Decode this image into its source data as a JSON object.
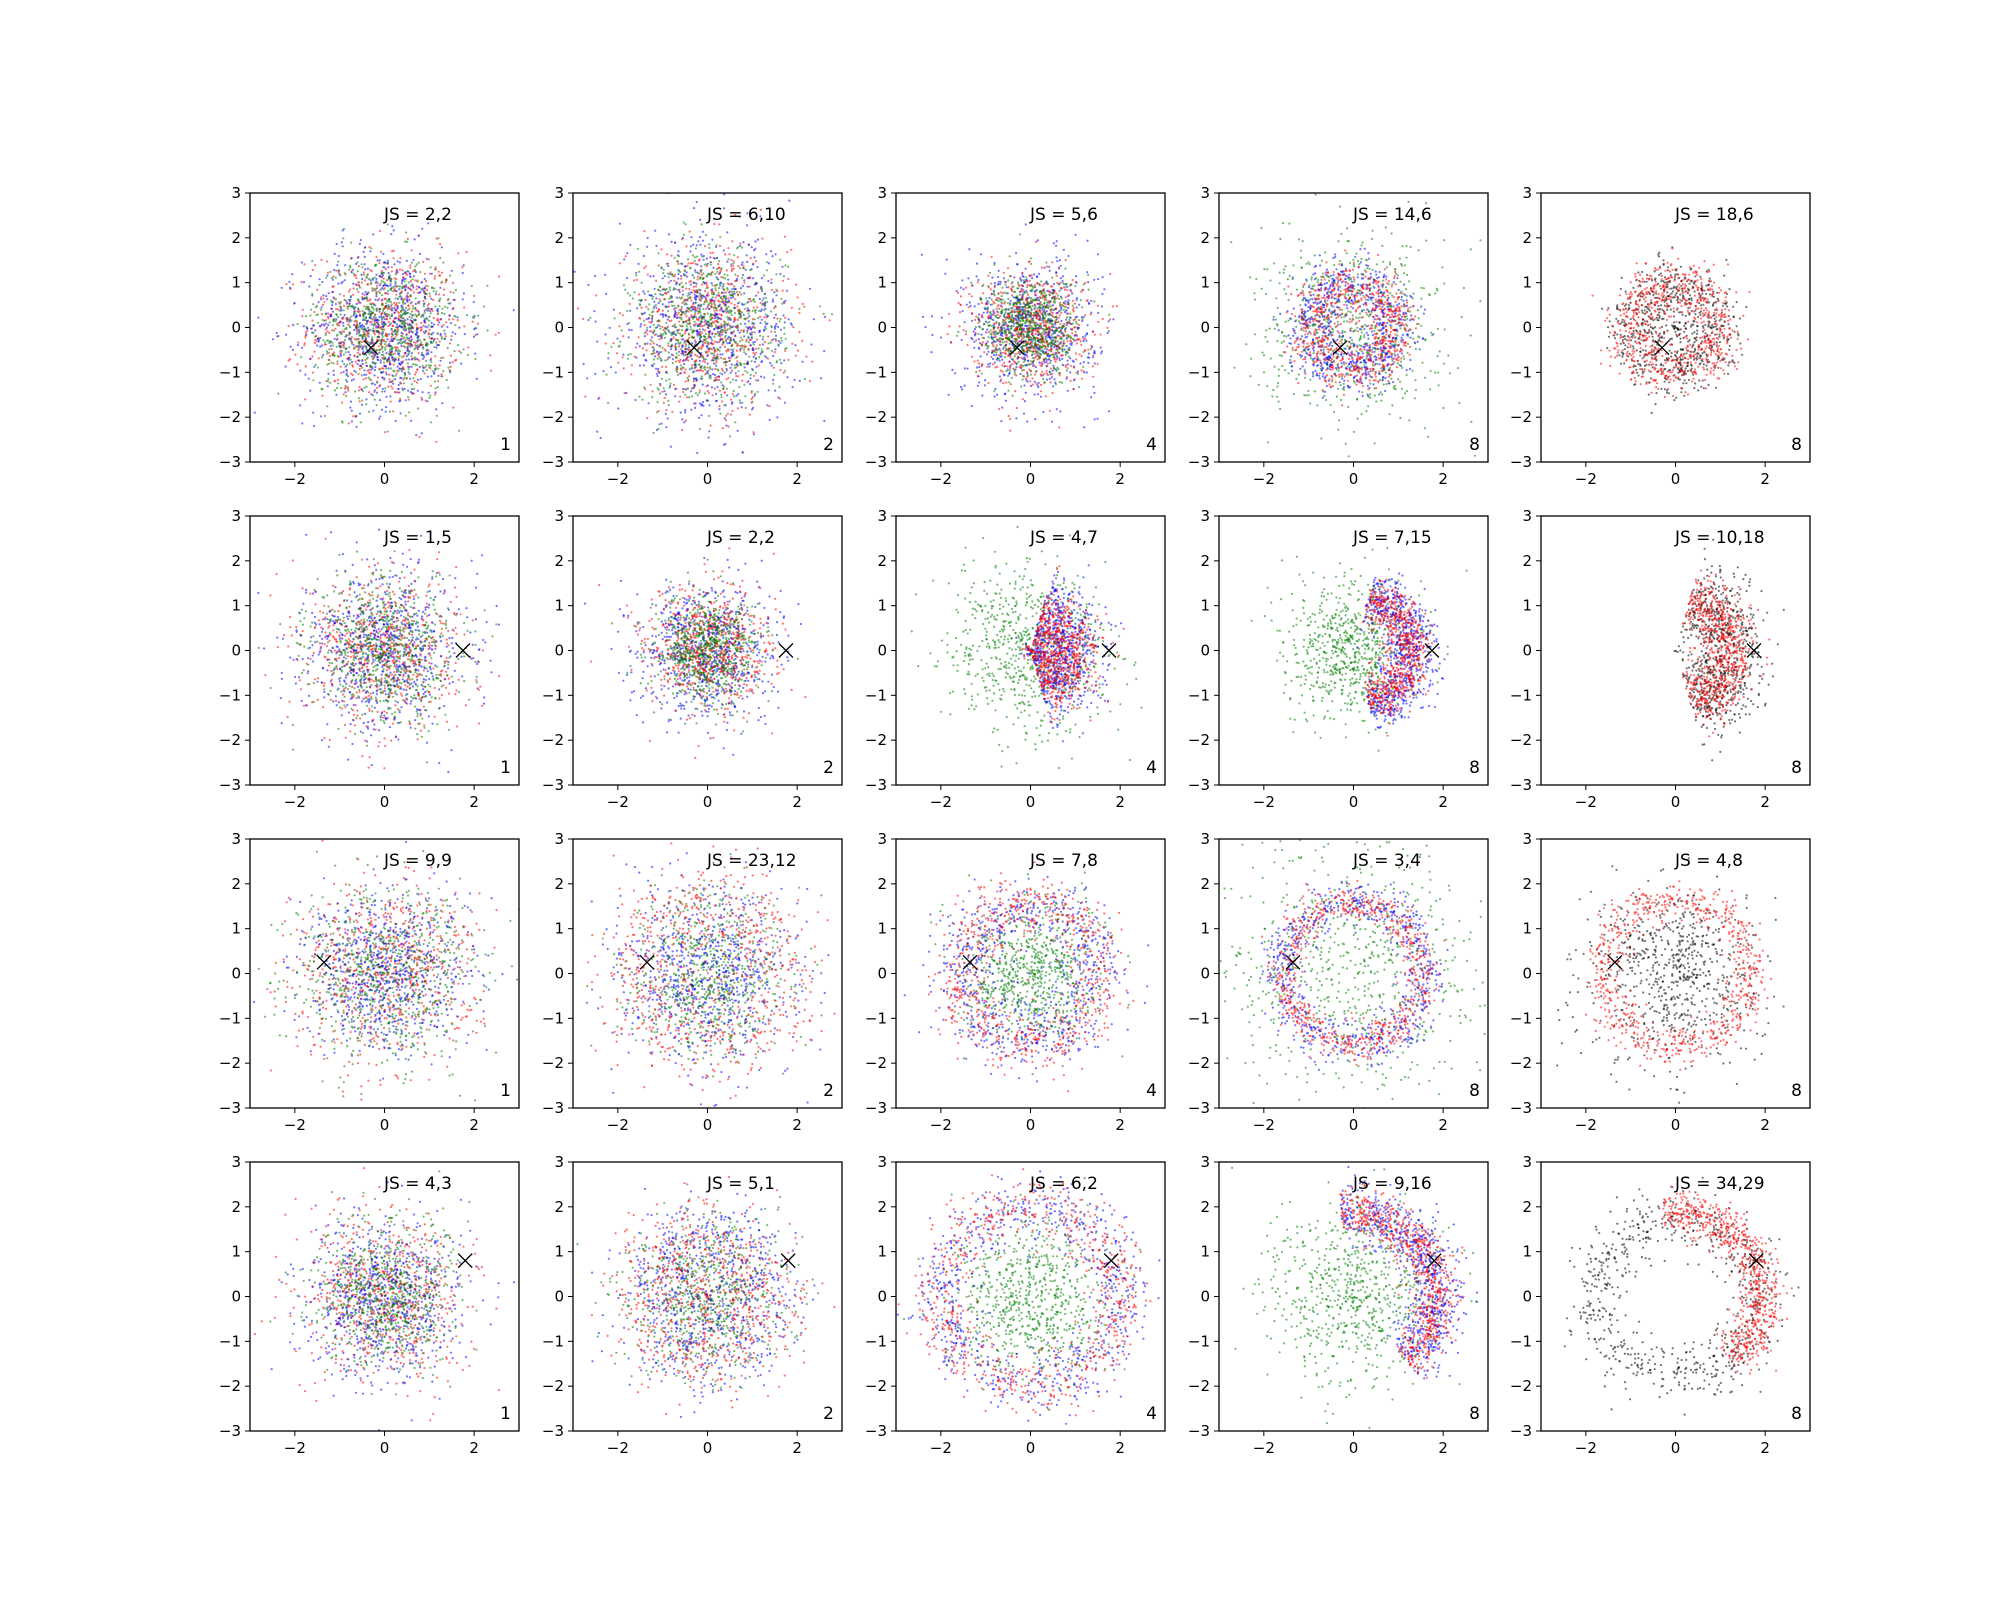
{
  "figure": {
    "background": "#ffffff",
    "color_legend": {
      "red": "#ff0000",
      "blue": "#0000ff",
      "green": "#008000",
      "black": "#000000"
    },
    "marker_symbol": "x"
  },
  "chart_data": [
    {
      "type": "scatter",
      "row": 0,
      "col": 0,
      "js_label": "JS = 2,2",
      "corner_label": "1",
      "marker": [
        -0.3,
        -0.45
      ],
      "xlim": [
        -3,
        3
      ],
      "ylim": [
        -3,
        3
      ],
      "xticks": [
        -2,
        0,
        2
      ],
      "yticks": [
        -3,
        -2,
        -1,
        0,
        1,
        2,
        3
      ],
      "series": [
        {
          "color": "#ff0000",
          "shape": "blob",
          "radius": 0,
          "spread": 0.85
        },
        {
          "color": "#0000ff",
          "shape": "blob",
          "radius": 0,
          "spread": 0.9
        },
        {
          "color": "#008000",
          "shape": "blob",
          "radius": 0,
          "spread": 0.8
        }
      ]
    },
    {
      "type": "scatter",
      "row": 0,
      "col": 1,
      "js_label": "JS = 6,10",
      "corner_label": "2",
      "marker": [
        -0.3,
        -0.45
      ],
      "xlim": [
        -3,
        3
      ],
      "ylim": [
        -3,
        3
      ],
      "xticks": [
        -2,
        0,
        2
      ],
      "yticks": [
        -3,
        -2,
        -1,
        0,
        1,
        2,
        3
      ],
      "series": [
        {
          "color": "#ff0000",
          "shape": "blob",
          "radius": 0,
          "spread": 0.9
        },
        {
          "color": "#0000ff",
          "shape": "blob",
          "radius": 0,
          "spread": 1.0
        },
        {
          "color": "#008000",
          "shape": "blob",
          "radius": 0,
          "spread": 0.85
        }
      ]
    },
    {
      "type": "scatter",
      "row": 0,
      "col": 2,
      "js_label": "JS = 5,6",
      "corner_label": "4",
      "marker": [
        -0.3,
        -0.45
      ],
      "xlim": [
        -3,
        3
      ],
      "ylim": [
        -3,
        3
      ],
      "xticks": [
        -2,
        0,
        2
      ],
      "yticks": [
        -3,
        -2,
        -1,
        0,
        1,
        2,
        3
      ],
      "series": [
        {
          "color": "#0000ff",
          "shape": "blob",
          "radius": 0,
          "spread": 0.75
        },
        {
          "color": "#ff0000",
          "shape": "blob",
          "radius": 0,
          "spread": 0.65
        },
        {
          "color": "#008000",
          "shape": "blob",
          "radius": 0,
          "spread": 0.55
        }
      ]
    },
    {
      "type": "scatter",
      "row": 0,
      "col": 3,
      "js_label": "JS = 14,6",
      "corner_label": "8",
      "marker": [
        -0.3,
        -0.45
      ],
      "xlim": [
        -3,
        3
      ],
      "ylim": [
        -3,
        3
      ],
      "xticks": [
        -2,
        0,
        2
      ],
      "yticks": [
        -3,
        -2,
        -1,
        0,
        1,
        2,
        3
      ],
      "series": [
        {
          "color": "#008000",
          "shape": "blob",
          "radius": 0,
          "spread": 1.0
        },
        {
          "color": "#0000ff",
          "shape": "ring",
          "radius": 1.0,
          "spread": 0.3
        },
        {
          "color": "#ff0000",
          "shape": "ring",
          "radius": 0.95,
          "spread": 0.28
        }
      ]
    },
    {
      "type": "scatter",
      "row": 0,
      "col": 4,
      "js_label": "JS = 18,6",
      "corner_label": "8",
      "marker": [
        -0.3,
        -0.45
      ],
      "xlim": [
        -3,
        3
      ],
      "ylim": [
        -3,
        3
      ],
      "xticks": [
        -2,
        0,
        2
      ],
      "yticks": [
        -3,
        -2,
        -1,
        0,
        1,
        2,
        3
      ],
      "series": [
        {
          "color": "#000000",
          "shape": "ring",
          "radius": 0.9,
          "spread": 0.35
        },
        {
          "color": "#ff0000",
          "shape": "ring",
          "radius": 1.0,
          "spread": 0.3
        }
      ]
    },
    {
      "type": "scatter",
      "row": 1,
      "col": 0,
      "js_label": "JS = 1,5",
      "corner_label": "1",
      "marker": [
        1.75,
        0.0
      ],
      "xlim": [
        -3,
        3
      ],
      "ylim": [
        -3,
        3
      ],
      "xticks": [
        -2,
        0,
        2
      ],
      "yticks": [
        -3,
        -2,
        -1,
        0,
        1,
        2,
        3
      ],
      "series": [
        {
          "color": "#ff0000",
          "shape": "blob",
          "radius": 0,
          "spread": 0.85
        },
        {
          "color": "#0000ff",
          "shape": "blob",
          "radius": 0,
          "spread": 0.9
        },
        {
          "color": "#008000",
          "shape": "blob",
          "radius": 0,
          "spread": 0.8
        }
      ]
    },
    {
      "type": "scatter",
      "row": 1,
      "col": 1,
      "js_label": "JS = 2,2",
      "corner_label": "2",
      "marker": [
        1.75,
        0.0
      ],
      "xlim": [
        -3,
        3
      ],
      "ylim": [
        -3,
        3
      ],
      "xticks": [
        -2,
        0,
        2
      ],
      "yticks": [
        -3,
        -2,
        -1,
        0,
        1,
        2,
        3
      ],
      "series": [
        {
          "color": "#0000ff",
          "shape": "blob",
          "radius": 0,
          "spread": 0.75
        },
        {
          "color": "#ff0000",
          "shape": "blob",
          "radius": 0,
          "spread": 0.7
        },
        {
          "color": "#008000",
          "shape": "blob",
          "radius": 0,
          "spread": 0.6
        }
      ]
    },
    {
      "type": "scatter",
      "row": 1,
      "col": 2,
      "js_label": "JS = 4,7",
      "corner_label": "4",
      "marker": [
        1.75,
        0.0
      ],
      "xlim": [
        -3,
        3
      ],
      "ylim": [
        -3,
        3
      ],
      "xticks": [
        -2,
        0,
        2
      ],
      "yticks": [
        -3,
        -2,
        -1,
        0,
        1,
        2,
        3
      ],
      "series": [
        {
          "color": "#008000",
          "shape": "blob",
          "radius": 0,
          "spread": 0.9
        },
        {
          "color": "#0000ff",
          "shape": "arc",
          "radius": 0.95,
          "spread": 0.45
        },
        {
          "color": "#ff0000",
          "shape": "arc",
          "radius": 0.85,
          "spread": 0.4
        }
      ]
    },
    {
      "type": "scatter",
      "row": 1,
      "col": 3,
      "js_label": "JS = 7,15",
      "corner_label": "8",
      "marker": [
        1.75,
        0.0
      ],
      "xlim": [
        -3,
        3
      ],
      "ylim": [
        -3,
        3
      ],
      "xticks": [
        -2,
        0,
        2
      ],
      "yticks": [
        -3,
        -2,
        -1,
        0,
        1,
        2,
        3
      ],
      "series": [
        {
          "color": "#008000",
          "shape": "blob",
          "radius": 0,
          "spread": 0.75
        },
        {
          "color": "#0000ff",
          "shape": "arc",
          "radius": 1.35,
          "spread": 0.3
        },
        {
          "color": "#ff0000",
          "shape": "arc",
          "radius": 1.25,
          "spread": 0.25
        }
      ]
    },
    {
      "type": "scatter",
      "row": 1,
      "col": 4,
      "js_label": "JS = 10,18",
      "corner_label": "8",
      "marker": [
        1.75,
        0.0
      ],
      "xlim": [
        -3,
        3
      ],
      "ylim": [
        -3,
        3
      ],
      "xticks": [
        -2,
        0,
        2
      ],
      "yticks": [
        -3,
        -2,
        -1,
        0,
        1,
        2,
        3
      ],
      "series": [
        {
          "color": "#000000",
          "shape": "arc",
          "radius": 1.3,
          "spread": 0.45
        },
        {
          "color": "#ff0000",
          "shape": "arc",
          "radius": 1.25,
          "spread": 0.3
        }
      ]
    },
    {
      "type": "scatter",
      "row": 2,
      "col": 0,
      "js_label": "JS = 9,9",
      "corner_label": "1",
      "marker": [
        -1.35,
        0.25
      ],
      "xlim": [
        -3,
        3
      ],
      "ylim": [
        -3,
        3
      ],
      "xticks": [
        -2,
        0,
        2
      ],
      "yticks": [
        -3,
        -2,
        -1,
        0,
        1,
        2,
        3
      ],
      "series": [
        {
          "color": "#ff0000",
          "shape": "blob",
          "radius": 0,
          "spread": 1.0
        },
        {
          "color": "#0000ff",
          "shape": "blob",
          "radius": 0,
          "spread": 0.9
        },
        {
          "color": "#008000",
          "shape": "blob",
          "radius": 0,
          "spread": 1.0
        }
      ]
    },
    {
      "type": "scatter",
      "row": 2,
      "col": 1,
      "js_label": "JS = 23,12",
      "corner_label": "2",
      "marker": [
        -1.35,
        0.25
      ],
      "xlim": [
        -3,
        3
      ],
      "ylim": [
        -3,
        3
      ],
      "xticks": [
        -2,
        0,
        2
      ],
      "yticks": [
        -3,
        -2,
        -1,
        0,
        1,
        2,
        3
      ],
      "series": [
        {
          "color": "#008000",
          "shape": "blob",
          "radius": 0,
          "spread": 0.9
        },
        {
          "color": "#0000ff",
          "shape": "blob",
          "radius": 0,
          "spread": 1.0
        },
        {
          "color": "#ff0000",
          "shape": "ring",
          "radius": 1.6,
          "spread": 0.55
        }
      ]
    },
    {
      "type": "scatter",
      "row": 2,
      "col": 2,
      "js_label": "JS = 7,8",
      "corner_label": "4",
      "marker": [
        -1.35,
        0.25
      ],
      "xlim": [
        -3,
        3
      ],
      "ylim": [
        -3,
        3
      ],
      "xticks": [
        -2,
        0,
        2
      ],
      "yticks": [
        -3,
        -2,
        -1,
        0,
        1,
        2,
        3
      ],
      "series": [
        {
          "color": "#008000",
          "shape": "blob",
          "radius": 0,
          "spread": 0.75
        },
        {
          "color": "#0000ff",
          "shape": "ring",
          "radius": 1.5,
          "spread": 0.4
        },
        {
          "color": "#ff0000",
          "shape": "ring",
          "radius": 1.6,
          "spread": 0.35
        }
      ]
    },
    {
      "type": "scatter",
      "row": 2,
      "col": 3,
      "js_label": "JS = 3,4",
      "corner_label": "8",
      "marker": [
        -1.35,
        0.25
      ],
      "xlim": [
        -3,
        3
      ],
      "ylim": [
        -3,
        3
      ],
      "xticks": [
        -2,
        0,
        2
      ],
      "yticks": [
        -3,
        -2,
        -1,
        0,
        1,
        2,
        3
      ],
      "series": [
        {
          "color": "#008000",
          "shape": "blob",
          "radius": 0,
          "spread": 1.5
        },
        {
          "color": "#0000ff",
          "shape": "ring",
          "radius": 1.6,
          "spread": 0.25
        },
        {
          "color": "#ff0000",
          "shape": "ring",
          "radius": 1.55,
          "spread": 0.2
        }
      ]
    },
    {
      "type": "scatter",
      "row": 2,
      "col": 4,
      "js_label": "JS = 4,8",
      "corner_label": "8",
      "marker": [
        -1.35,
        0.25
      ],
      "xlim": [
        -3,
        3
      ],
      "ylim": [
        -3,
        3
      ],
      "xticks": [
        -2,
        0,
        2
      ],
      "yticks": [
        -3,
        -2,
        -1,
        0,
        1,
        2,
        3
      ],
      "series": [
        {
          "color": "#000000",
          "shape": "blob",
          "radius": 0,
          "spread": 1.0
        },
        {
          "color": "#ff0000",
          "shape": "ring",
          "radius": 1.65,
          "spread": 0.22
        }
      ]
    },
    {
      "type": "scatter",
      "row": 3,
      "col": 0,
      "js_label": "JS = 4,3",
      "corner_label": "1",
      "marker": [
        1.8,
        0.8
      ],
      "xlim": [
        -3,
        3
      ],
      "ylim": [
        -3,
        3
      ],
      "xticks": [
        -2,
        0,
        2
      ],
      "yticks": [
        -3,
        -2,
        -1,
        0,
        1,
        2,
        3
      ],
      "series": [
        {
          "color": "#ff0000",
          "shape": "blob",
          "radius": 0,
          "spread": 0.9
        },
        {
          "color": "#0000ff",
          "shape": "blob",
          "radius": 0,
          "spread": 0.9
        },
        {
          "color": "#008000",
          "shape": "blob",
          "radius": 0,
          "spread": 0.8
        }
      ]
    },
    {
      "type": "scatter",
      "row": 3,
      "col": 1,
      "js_label": "JS = 5,1",
      "corner_label": "2",
      "marker": [
        1.8,
        0.8
      ],
      "xlim": [
        -3,
        3
      ],
      "ylim": [
        -3,
        3
      ],
      "xticks": [
        -2,
        0,
        2
      ],
      "yticks": [
        -3,
        -2,
        -1,
        0,
        1,
        2,
        3
      ],
      "series": [
        {
          "color": "#008000",
          "shape": "blob",
          "radius": 0,
          "spread": 0.85
        },
        {
          "color": "#0000ff",
          "shape": "ring",
          "radius": 1.3,
          "spread": 0.55
        },
        {
          "color": "#ff0000",
          "shape": "ring",
          "radius": 1.3,
          "spread": 0.55
        }
      ]
    },
    {
      "type": "scatter",
      "row": 3,
      "col": 2,
      "js_label": "JS = 6,2",
      "corner_label": "4",
      "marker": [
        1.8,
        0.8
      ],
      "xlim": [
        -3,
        3
      ],
      "ylim": [
        -3,
        3
      ],
      "xticks": [
        -2,
        0,
        2
      ],
      "yticks": [
        -3,
        -2,
        -1,
        0,
        1,
        2,
        3
      ],
      "series": [
        {
          "color": "#008000",
          "shape": "blob",
          "radius": 0,
          "spread": 0.85
        },
        {
          "color": "#0000ff",
          "shape": "ring",
          "radius": 2.0,
          "spread": 0.35
        },
        {
          "color": "#ff0000",
          "shape": "ring",
          "radius": 2.0,
          "spread": 0.35
        }
      ]
    },
    {
      "type": "scatter",
      "row": 3,
      "col": 3,
      "js_label": "JS = 9,16",
      "corner_label": "8",
      "marker": [
        1.8,
        0.8
      ],
      "xlim": [
        -3,
        3
      ],
      "ylim": [
        -3,
        3
      ],
      "xticks": [
        -2,
        0,
        2
      ],
      "yticks": [
        -3,
        -2,
        -1,
        0,
        1,
        2,
        3
      ],
      "series": [
        {
          "color": "#008000",
          "shape": "blob",
          "radius": 0,
          "spread": 1.0
        },
        {
          "color": "#0000ff",
          "shape": "arc",
          "radius": 1.85,
          "spread": 0.3
        },
        {
          "color": "#ff0000",
          "shape": "arc",
          "radius": 1.85,
          "spread": 0.25
        }
      ]
    },
    {
      "type": "scatter",
      "row": 3,
      "col": 4,
      "js_label": "JS = 34,29",
      "corner_label": "8",
      "marker": [
        1.8,
        0.8
      ],
      "xlim": [
        -3,
        3
      ],
      "ylim": [
        -3,
        3
      ],
      "xticks": [
        -2,
        0,
        2
      ],
      "yticks": [
        -3,
        -2,
        -1,
        0,
        1,
        2,
        3
      ],
      "series": [
        {
          "color": "#000000",
          "shape": "ring",
          "radius": 1.8,
          "spread": 0.35
        },
        {
          "color": "#ff0000",
          "shape": "arc",
          "radius": 1.9,
          "spread": 0.25
        }
      ]
    }
  ]
}
